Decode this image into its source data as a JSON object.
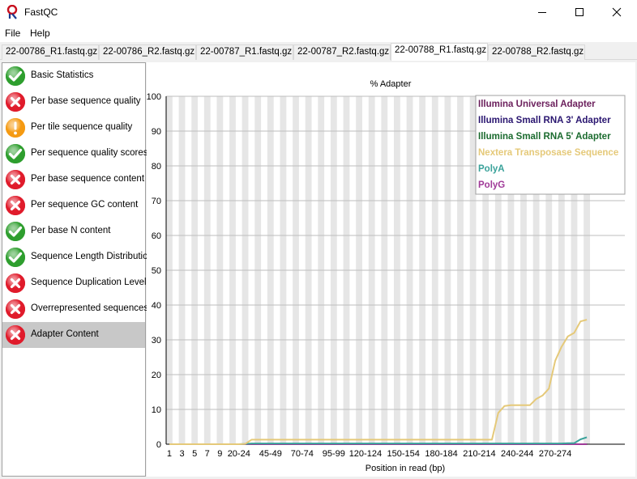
{
  "window": {
    "title": "FastQC",
    "minimize_glyph": "—",
    "close_glyph": "✕"
  },
  "menu": [
    "File",
    "Help"
  ],
  "tabs": [
    {
      "label": "22-00786_R1.fastq.gz",
      "active": false
    },
    {
      "label": "22-00786_R2.fastq.gz",
      "active": false
    },
    {
      "label": "22-00787_R1.fastq.gz",
      "active": false
    },
    {
      "label": "22-00787_R2.fastq.gz",
      "active": false
    },
    {
      "label": "22-00788_R1.fastq.gz",
      "active": true
    },
    {
      "label": "22-00788_R2.fastq.gz",
      "active": false
    }
  ],
  "modules": [
    {
      "label": "Basic Statistics",
      "status": "pass",
      "selected": false
    },
    {
      "label": "Per base sequence quality",
      "status": "fail",
      "selected": false
    },
    {
      "label": "Per tile sequence quality",
      "status": "warn",
      "selected": false
    },
    {
      "label": "Per sequence quality scores",
      "status": "pass",
      "selected": false
    },
    {
      "label": "Per base sequence content",
      "status": "fail",
      "selected": false
    },
    {
      "label": "Per sequence GC content",
      "status": "fail",
      "selected": false
    },
    {
      "label": "Per base N content",
      "status": "pass",
      "selected": false
    },
    {
      "label": "Sequence Length Distribution",
      "status": "pass",
      "selected": false
    },
    {
      "label": "Sequence Duplication Levels",
      "status": "fail",
      "selected": false
    },
    {
      "label": "Overrepresented sequences",
      "status": "fail",
      "selected": false
    },
    {
      "label": "Adapter Content",
      "status": "fail",
      "selected": true
    }
  ],
  "status_colors": {
    "pass": "#2e9e2e",
    "fail": "#e01b2b",
    "warn": "#f59a12"
  },
  "chart_data": {
    "type": "line",
    "title": "% Adapter",
    "xlabel": "Position in read (bp)",
    "ylabel": "",
    "ylim": [
      0,
      100
    ],
    "yticks": [
      0,
      10,
      20,
      30,
      40,
      50,
      60,
      70,
      80,
      90,
      100
    ],
    "categories": [
      "1",
      "2",
      "3",
      "4",
      "5",
      "6",
      "7",
      "8",
      "9",
      "10-14",
      "15-19",
      "20-24",
      "25-29",
      "30-34",
      "35-39",
      "40-44",
      "45-49",
      "50-54",
      "55-59",
      "60-64",
      "65-69",
      "70-74",
      "75-79",
      "80-84",
      "85-89",
      "90-94",
      "95-99",
      "100-104",
      "105-109",
      "110-114",
      "115-119",
      "120-124",
      "125-129",
      "130-134",
      "135-139",
      "140-144",
      "145-149",
      "150-154",
      "155-159",
      "160-164",
      "165-169",
      "170-174",
      "175-179",
      "180-184",
      "185-189",
      "190-194",
      "195-199",
      "200-204",
      "205-209",
      "210-214",
      "215-219",
      "220-224",
      "225-229",
      "230-234",
      "235-239",
      "240-244",
      "245-249",
      "250-254",
      "255-259",
      "260-264",
      "265-269",
      "270-274",
      "275-279",
      "280-284",
      "285-289",
      "290-294",
      "295-299"
    ],
    "tick_labels": [
      "1",
      "3",
      "5",
      "7",
      "9",
      "20-24",
      "45-49",
      "70-74",
      "95-99",
      "120-124",
      "150-154",
      "180-184",
      "210-214",
      "240-244",
      "270-274"
    ],
    "tick_indices": [
      0,
      2,
      4,
      6,
      8,
      11,
      16,
      21,
      26,
      31,
      37,
      43,
      49,
      55,
      61
    ],
    "legend_position": "top-right",
    "series": [
      {
        "name": "Illumina Universal Adapter",
        "color": "#6b1f5c",
        "values": [
          0,
          0,
          0,
          0,
          0,
          0,
          0,
          0,
          0,
          0,
          0,
          0,
          0,
          0,
          0,
          0,
          0,
          0,
          0,
          0,
          0,
          0,
          0,
          0,
          0,
          0,
          0,
          0,
          0,
          0,
          0,
          0,
          0,
          0,
          0,
          0,
          0,
          0,
          0,
          0,
          0,
          0,
          0,
          0,
          0,
          0,
          0,
          0,
          0,
          0,
          0,
          0,
          0,
          0,
          0,
          0,
          0,
          0,
          0,
          0,
          0,
          0,
          0,
          0,
          0,
          0,
          0
        ]
      },
      {
        "name": "Illumina Small RNA 3' Adapter",
        "color": "#2a1670",
        "values": [
          0,
          0,
          0,
          0,
          0,
          0,
          0,
          0,
          0,
          0,
          0,
          0,
          0,
          0,
          0,
          0,
          0,
          0,
          0,
          0,
          0,
          0,
          0,
          0,
          0,
          0,
          0,
          0,
          0,
          0,
          0,
          0,
          0,
          0,
          0,
          0,
          0,
          0,
          0,
          0,
          0,
          0,
          0,
          0,
          0,
          0,
          0,
          0,
          0,
          0,
          0,
          0,
          0,
          0,
          0,
          0,
          0,
          0,
          0,
          0,
          0,
          0,
          0,
          0,
          0,
          0,
          0
        ]
      },
      {
        "name": "Illumina Small RNA 5' Adapter",
        "color": "#1b6b2f",
        "values": [
          0,
          0,
          0,
          0,
          0,
          0,
          0,
          0,
          0,
          0,
          0,
          0,
          0,
          0,
          0,
          0,
          0,
          0,
          0,
          0,
          0,
          0,
          0,
          0,
          0,
          0,
          0,
          0,
          0,
          0,
          0,
          0,
          0,
          0,
          0,
          0,
          0,
          0,
          0,
          0,
          0,
          0,
          0,
          0,
          0,
          0,
          0,
          0,
          0,
          0,
          0,
          0,
          0,
          0,
          0,
          0,
          0,
          0,
          0,
          0,
          0,
          0,
          0,
          0,
          0,
          0,
          0
        ]
      },
      {
        "name": "Nextera Transposase Sequence",
        "color": "#e5c979",
        "values": [
          0,
          0,
          0,
          0,
          0,
          0,
          0,
          0,
          0,
          0,
          0,
          0,
          0.1,
          1.3,
          1.3,
          1.3,
          1.3,
          1.3,
          1.3,
          1.3,
          1.3,
          1.3,
          1.3,
          1.3,
          1.3,
          1.3,
          1.3,
          1.3,
          1.3,
          1.3,
          1.3,
          1.3,
          1.3,
          1.3,
          1.3,
          1.3,
          1.3,
          1.3,
          1.3,
          1.3,
          1.3,
          1.3,
          1.3,
          1.3,
          1.3,
          1.3,
          1.3,
          1.3,
          1.3,
          1.3,
          1.3,
          1.3,
          9,
          11,
          11.2,
          11.2,
          11.2,
          11.2,
          13,
          14,
          16,
          24,
          28,
          31,
          32,
          35.3,
          35.8
        ]
      },
      {
        "name": "PolyA",
        "color": "#3aa29a",
        "values": [
          0,
          0,
          0,
          0,
          0,
          0,
          0,
          0,
          0,
          0,
          0,
          0,
          0.1,
          0.2,
          0.2,
          0.2,
          0.2,
          0.2,
          0.2,
          0.2,
          0.2,
          0.2,
          0.2,
          0.2,
          0.2,
          0.2,
          0.2,
          0.2,
          0.2,
          0.2,
          0.2,
          0.2,
          0.2,
          0.2,
          0.2,
          0.2,
          0.2,
          0.2,
          0.2,
          0.2,
          0.2,
          0.2,
          0.2,
          0.2,
          0.2,
          0.2,
          0.2,
          0.2,
          0.2,
          0.2,
          0.2,
          0.2,
          0.2,
          0.2,
          0.2,
          0.2,
          0.2,
          0.2,
          0.2,
          0.2,
          0.2,
          0.2,
          0.2,
          0.3,
          0.3,
          1.4,
          2.0
        ]
      },
      {
        "name": "PolyG",
        "color": "#a03a98",
        "values": [
          0,
          0,
          0,
          0,
          0,
          0,
          0,
          0,
          0,
          0,
          0,
          0,
          0,
          0,
          0,
          0,
          0,
          0,
          0,
          0,
          0,
          0,
          0,
          0,
          0,
          0,
          0,
          0,
          0,
          0,
          0,
          0,
          0,
          0,
          0,
          0,
          0,
          0,
          0,
          0,
          0,
          0,
          0,
          0,
          0,
          0,
          0,
          0,
          0,
          0,
          0,
          0,
          0,
          0,
          0,
          0,
          0,
          0,
          0,
          0,
          0,
          0,
          0,
          0,
          0,
          0,
          0
        ]
      }
    ]
  }
}
